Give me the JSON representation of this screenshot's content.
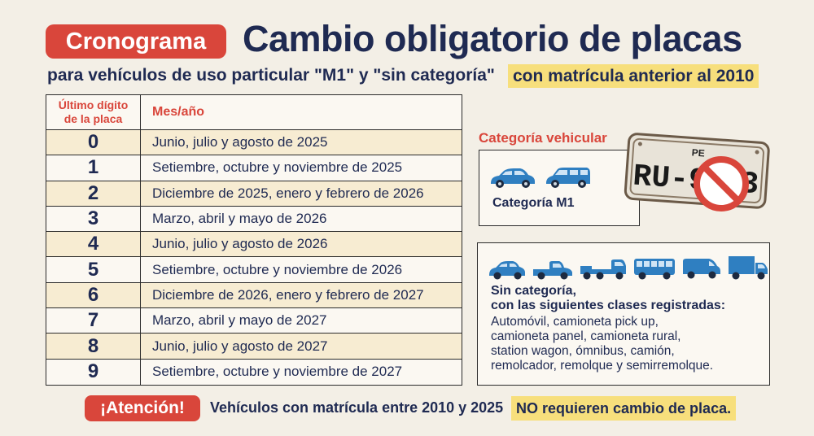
{
  "header": {
    "badge": "Cronograma",
    "title": "Cambio obligatorio de placas",
    "subtitle": "para vehículos de uso particular \"M1\" y \"sin categoría\"",
    "highlight": "con matrícula anterior al 2010"
  },
  "table": {
    "col1_header_line1": "Último dígito",
    "col1_header_line2": "de la placa",
    "col2_header": "Mes/año",
    "rows": [
      {
        "digit": "0",
        "months": "Junio, julio y agosto de 2025"
      },
      {
        "digit": "1",
        "months": "Setiembre, octubre y noviembre de 2025"
      },
      {
        "digit": "2",
        "months": "Diciembre de 2025,  enero y febrero de 2026"
      },
      {
        "digit": "3",
        "months": "Marzo, abril y mayo de 2026"
      },
      {
        "digit": "4",
        "months": "Junio, julio y agosto de 2026"
      },
      {
        "digit": "5",
        "months": "Setiembre, octubre y noviembre de 2026"
      },
      {
        "digit": "6",
        "months": "Diciembre de 2026,  enero y febrero de 2027"
      },
      {
        "digit": "7",
        "months": "Marzo, abril y mayo de 2027"
      },
      {
        "digit": "8",
        "months": "Junio, julio y agosto de 2027"
      },
      {
        "digit": "9",
        "months": "Setiembre, octubre y noviembre de 2027"
      }
    ]
  },
  "category": {
    "title": "Categoría vehicular",
    "m1_label": "Categoría M1",
    "plate_top": "PE",
    "plate_text": "RU-9",
    "plate_tail": "3",
    "sin_title_line1": "Sin categoría,",
    "sin_title_line2": "con las siguientes clases registradas:",
    "sin_list_line1": "Automóvil, camioneta pick up,",
    "sin_list_line2": "camioneta panel, camioneta rural,",
    "sin_list_line3": "station wagon, ómnibus, camión,",
    "sin_list_line4": "remolcador, remolque y semirremolque."
  },
  "footer": {
    "badge": "¡Atención!",
    "text": "Vehículos con matrícula entre 2010 y 2025",
    "highlight": "NO requieren cambio de placa."
  },
  "colors": {
    "accent_red": "#d9463b",
    "navy": "#1f2a52",
    "highlight_yellow": "#f7df7c",
    "vehicle_blue": "#2f7fc1"
  }
}
